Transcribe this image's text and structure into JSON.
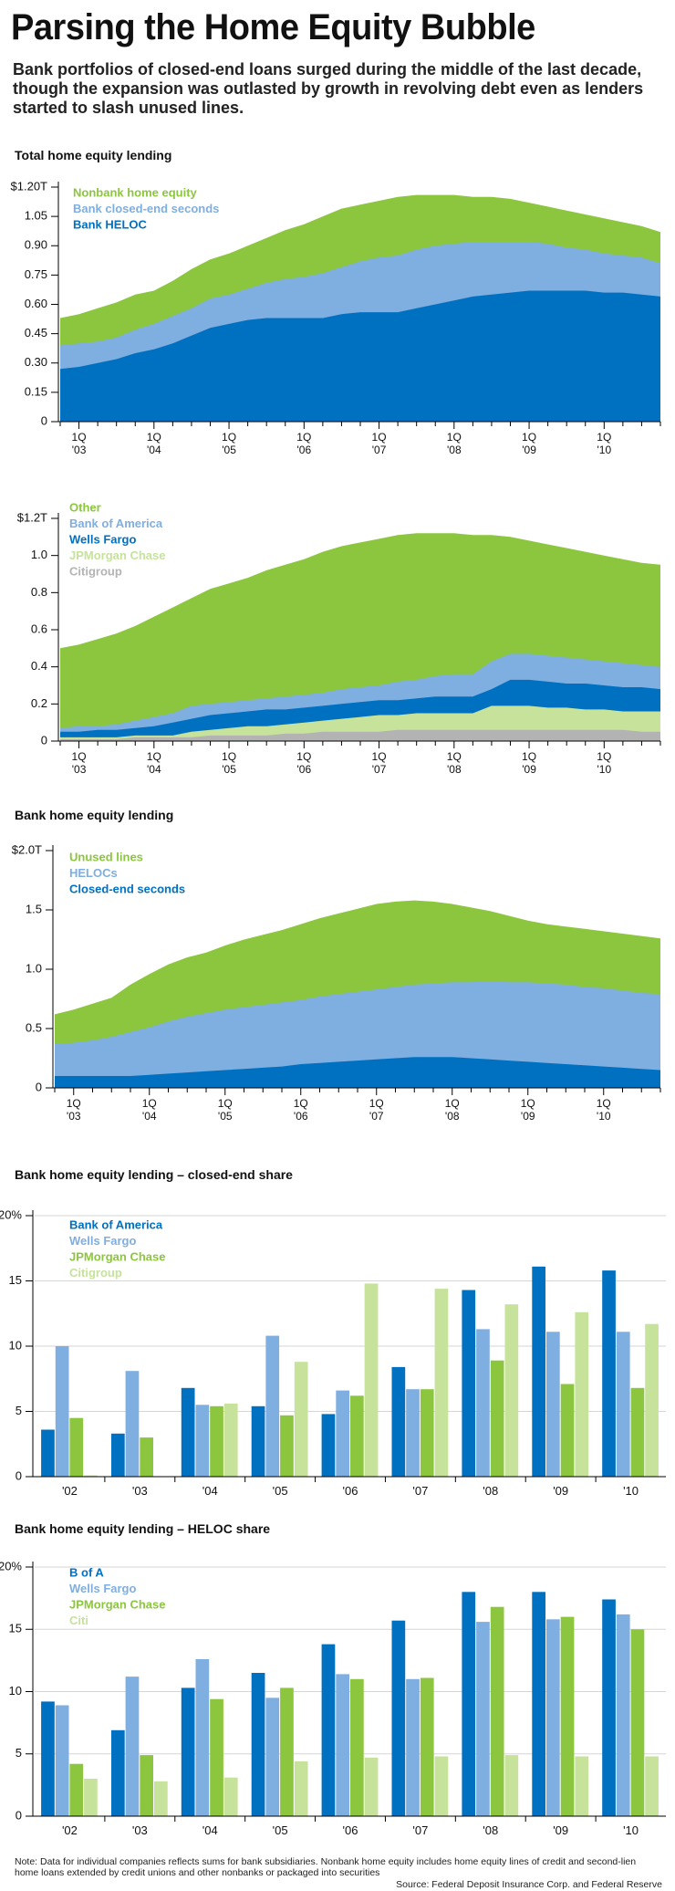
{
  "header": {
    "title": "Parsing the Home Equity Bubble",
    "subtitle": "Bank portfolios of closed-end loans surged during the middle of the last decade, though the expansion was outlasted by growth in revolving debt even as lenders started to slash unused lines."
  },
  "colors": {
    "dark_blue": "#0070c0",
    "light_blue": "#7faee0",
    "green": "#8cc63e",
    "light_green": "#c6e29b",
    "gray": "#b3b3b3",
    "axis": "#000000"
  },
  "chart_data": [
    {
      "id": "total",
      "type": "area",
      "title": "Total home equity lending",
      "x_tick_labels": [
        [
          "1Q",
          "'03"
        ],
        [
          "1Q",
          "'04"
        ],
        [
          "1Q",
          "'05"
        ],
        [
          "1Q",
          "'06"
        ],
        [
          "1Q",
          "'07"
        ],
        [
          "1Q",
          "'08"
        ],
        [
          "1Q",
          "'09"
        ],
        [
          "1Q",
          "'10"
        ]
      ],
      "x_tick_positions": [
        1,
        5,
        9,
        13,
        17,
        21,
        25,
        29
      ],
      "y_ticks": [
        0,
        0.15,
        0.3,
        0.45,
        0.6,
        0.75,
        0.9,
        1.05,
        1.2
      ],
      "y_tick_labels": [
        "0",
        "0.15",
        "0.30",
        "0.45",
        "0.60",
        "0.75",
        "0.90",
        "1.05",
        "$1.20T"
      ],
      "ylim": [
        0,
        1.2
      ],
      "x_count": 33,
      "legend": [
        {
          "label": "Nonbank home equity",
          "color": "#8cc63e"
        },
        {
          "label": "Bank closed-end seconds",
          "color": "#7faee0"
        },
        {
          "label": "Bank HELOC",
          "color": "#0070c0"
        }
      ],
      "series": [
        {
          "name": "Bank HELOC",
          "color": "#0070c0",
          "values": [
            0.27,
            0.28,
            0.3,
            0.32,
            0.35,
            0.37,
            0.4,
            0.44,
            0.48,
            0.5,
            0.52,
            0.53,
            0.53,
            0.53,
            0.53,
            0.55,
            0.56,
            0.56,
            0.56,
            0.58,
            0.6,
            0.62,
            0.64,
            0.65,
            0.66,
            0.67,
            0.67,
            0.67,
            0.67,
            0.66,
            0.66,
            0.65,
            0.64
          ]
        },
        {
          "name": "Bank closed-end seconds",
          "color": "#7faee0",
          "values": [
            0.39,
            0.4,
            0.41,
            0.43,
            0.47,
            0.5,
            0.54,
            0.58,
            0.63,
            0.65,
            0.68,
            0.71,
            0.73,
            0.74,
            0.76,
            0.79,
            0.82,
            0.84,
            0.85,
            0.88,
            0.9,
            0.91,
            0.92,
            0.92,
            0.92,
            0.92,
            0.91,
            0.89,
            0.88,
            0.86,
            0.85,
            0.84,
            0.81
          ]
        },
        {
          "name": "Nonbank home equity",
          "color": "#8cc63e",
          "values": [
            0.53,
            0.55,
            0.58,
            0.61,
            0.65,
            0.67,
            0.72,
            0.78,
            0.83,
            0.86,
            0.9,
            0.94,
            0.98,
            1.01,
            1.05,
            1.09,
            1.11,
            1.13,
            1.15,
            1.16,
            1.16,
            1.16,
            1.15,
            1.15,
            1.14,
            1.12,
            1.1,
            1.08,
            1.06,
            1.04,
            1.02,
            1.0,
            0.97
          ]
        }
      ]
    },
    {
      "id": "by_bank",
      "type": "area",
      "title": "",
      "x_tick_labels": [
        [
          "1Q",
          "'03"
        ],
        [
          "1Q",
          "'04"
        ],
        [
          "1Q",
          "'05"
        ],
        [
          "1Q",
          "'06"
        ],
        [
          "1Q",
          "'07"
        ],
        [
          "1Q",
          "'08"
        ],
        [
          "1Q",
          "'09"
        ],
        [
          "1Q",
          "'10"
        ]
      ],
      "x_tick_positions": [
        1,
        5,
        9,
        13,
        17,
        21,
        25,
        29
      ],
      "y_ticks": [
        0,
        0.2,
        0.4,
        0.6,
        0.8,
        1.0,
        1.2
      ],
      "y_tick_labels": [
        "0",
        "0.2",
        "0.4",
        "0.6",
        "0.8",
        "1.0",
        "$1.2T"
      ],
      "ylim": [
        0,
        1.2
      ],
      "x_count": 33,
      "legend": [
        {
          "label": "Other",
          "color": "#8cc63e"
        },
        {
          "label": "Bank of America",
          "color": "#7faee0"
        },
        {
          "label": "Wells Fargo",
          "color": "#0070c0"
        },
        {
          "label": "JPMorgan Chase",
          "color": "#c6e29b"
        },
        {
          "label": "Citigroup",
          "color": "#b3b3b3"
        }
      ],
      "series": [
        {
          "name": "Citigroup",
          "color": "#b3b3b3",
          "values": [
            0.01,
            0.01,
            0.01,
            0.01,
            0.02,
            0.02,
            0.02,
            0.02,
            0.03,
            0.03,
            0.03,
            0.03,
            0.04,
            0.04,
            0.05,
            0.05,
            0.05,
            0.05,
            0.06,
            0.06,
            0.06,
            0.06,
            0.06,
            0.06,
            0.06,
            0.06,
            0.06,
            0.06,
            0.06,
            0.06,
            0.06,
            0.05,
            0.05
          ]
        },
        {
          "name": "JPMorgan Chase",
          "color": "#c6e29b",
          "values": [
            0.02,
            0.02,
            0.02,
            0.02,
            0.03,
            0.03,
            0.03,
            0.05,
            0.06,
            0.07,
            0.08,
            0.08,
            0.09,
            0.1,
            0.11,
            0.12,
            0.13,
            0.14,
            0.14,
            0.15,
            0.15,
            0.15,
            0.15,
            0.19,
            0.19,
            0.19,
            0.18,
            0.18,
            0.17,
            0.17,
            0.16,
            0.16,
            0.16
          ]
        },
        {
          "name": "Wells Fargo",
          "color": "#0070c0",
          "values": [
            0.05,
            0.05,
            0.06,
            0.06,
            0.07,
            0.08,
            0.1,
            0.12,
            0.14,
            0.15,
            0.16,
            0.17,
            0.17,
            0.18,
            0.19,
            0.2,
            0.21,
            0.22,
            0.22,
            0.23,
            0.24,
            0.24,
            0.24,
            0.28,
            0.33,
            0.33,
            0.32,
            0.31,
            0.31,
            0.3,
            0.29,
            0.29,
            0.28
          ]
        },
        {
          "name": "Bank of America",
          "color": "#7faee0",
          "values": [
            0.07,
            0.08,
            0.08,
            0.09,
            0.11,
            0.13,
            0.15,
            0.19,
            0.2,
            0.21,
            0.22,
            0.23,
            0.24,
            0.25,
            0.26,
            0.28,
            0.29,
            0.3,
            0.32,
            0.33,
            0.35,
            0.36,
            0.36,
            0.43,
            0.47,
            0.47,
            0.46,
            0.45,
            0.44,
            0.43,
            0.42,
            0.41,
            0.4
          ]
        },
        {
          "name": "Other",
          "color": "#8cc63e",
          "values": [
            0.5,
            0.52,
            0.55,
            0.58,
            0.62,
            0.67,
            0.72,
            0.77,
            0.82,
            0.85,
            0.88,
            0.92,
            0.95,
            0.98,
            1.02,
            1.05,
            1.07,
            1.09,
            1.11,
            1.12,
            1.12,
            1.12,
            1.11,
            1.11,
            1.1,
            1.08,
            1.06,
            1.04,
            1.02,
            1.0,
            0.98,
            0.96,
            0.95
          ]
        }
      ]
    },
    {
      "id": "bank_lending",
      "type": "area",
      "title": "Bank home equity lending",
      "x_tick_labels": [
        [
          "1Q",
          "'03"
        ],
        [
          "1Q",
          "'04"
        ],
        [
          "1Q",
          "'05"
        ],
        [
          "1Q",
          "'06"
        ],
        [
          "1Q",
          "'07"
        ],
        [
          "1Q",
          "'08"
        ],
        [
          "1Q",
          "'09"
        ],
        [
          "1Q",
          "'10"
        ]
      ],
      "x_tick_positions": [
        1,
        5,
        9,
        13,
        17,
        21,
        25,
        29
      ],
      "y_ticks": [
        0,
        0.5,
        1.0,
        1.5,
        2.0
      ],
      "y_tick_labels": [
        "0",
        "0.5",
        "1.0",
        "1.5",
        "$2.0T"
      ],
      "ylim": [
        0,
        2.0
      ],
      "x_count": 33,
      "legend": [
        {
          "label": "Unused lines",
          "color": "#8cc63e"
        },
        {
          "label": "HELOCs",
          "color": "#7faee0"
        },
        {
          "label": "Closed-end seconds",
          "color": "#0070c0"
        }
      ],
      "series": [
        {
          "name": "Closed-end seconds",
          "color": "#0070c0",
          "values": [
            0.1,
            0.1,
            0.1,
            0.1,
            0.1,
            0.11,
            0.12,
            0.13,
            0.14,
            0.15,
            0.16,
            0.17,
            0.18,
            0.2,
            0.21,
            0.22,
            0.23,
            0.24,
            0.25,
            0.26,
            0.26,
            0.26,
            0.25,
            0.24,
            0.23,
            0.22,
            0.21,
            0.2,
            0.19,
            0.18,
            0.17,
            0.16,
            0.15
          ]
        },
        {
          "name": "HELOCs",
          "color": "#7faee0",
          "values": [
            0.37,
            0.38,
            0.4,
            0.43,
            0.47,
            0.51,
            0.56,
            0.6,
            0.63,
            0.66,
            0.68,
            0.7,
            0.72,
            0.74,
            0.77,
            0.79,
            0.81,
            0.83,
            0.85,
            0.87,
            0.88,
            0.89,
            0.89,
            0.9,
            0.89,
            0.89,
            0.88,
            0.87,
            0.85,
            0.84,
            0.82,
            0.8,
            0.79
          ]
        },
        {
          "name": "Unused lines",
          "color": "#8cc63e",
          "values": [
            0.62,
            0.66,
            0.71,
            0.76,
            0.87,
            0.96,
            1.04,
            1.1,
            1.14,
            1.2,
            1.25,
            1.29,
            1.33,
            1.38,
            1.43,
            1.47,
            1.51,
            1.55,
            1.57,
            1.58,
            1.57,
            1.55,
            1.52,
            1.49,
            1.45,
            1.41,
            1.38,
            1.36,
            1.34,
            1.32,
            1.3,
            1.28,
            1.26
          ]
        }
      ]
    },
    {
      "id": "closed_end_share",
      "type": "bar",
      "title": "Bank home equity lending – closed-end share",
      "categories": [
        "'02",
        "'03",
        "'04",
        "'05",
        "'06",
        "'07",
        "'08",
        "'09",
        "'10"
      ],
      "y_ticks": [
        0,
        5,
        10,
        15,
        20
      ],
      "y_tick_labels": [
        "0",
        "5",
        "10",
        "15",
        "20%"
      ],
      "ylim": [
        0,
        20
      ],
      "legend": [
        {
          "label": "Bank of America",
          "color": "#0070c0"
        },
        {
          "label": "Wells Fargo",
          "color": "#7faee0"
        },
        {
          "label": "JPMorgan Chase",
          "color": "#8cc63e"
        },
        {
          "label": "Citigroup",
          "color": "#c6e29b"
        }
      ],
      "series": [
        {
          "name": "Bank of America",
          "color": "#0070c0",
          "values": [
            3.6,
            3.3,
            6.8,
            5.4,
            4.8,
            8.4,
            14.3,
            16.1,
            15.8
          ]
        },
        {
          "name": "Wells Fargo",
          "color": "#7faee0",
          "values": [
            10.0,
            8.1,
            5.5,
            10.8,
            6.6,
            6.7,
            11.3,
            11.1,
            11.1
          ]
        },
        {
          "name": "JPMorgan Chase",
          "color": "#8cc63e",
          "values": [
            4.5,
            3.0,
            5.4,
            4.7,
            6.2,
            6.7,
            8.9,
            7.1,
            6.8
          ]
        },
        {
          "name": "Citigroup",
          "color": "#c6e29b",
          "values": [
            0.1,
            0,
            5.6,
            8.8,
            14.8,
            14.4,
            13.2,
            12.6,
            11.7
          ]
        }
      ]
    },
    {
      "id": "heloc_share",
      "type": "bar",
      "title": "Bank home equity lending – HELOC share",
      "categories": [
        "'02",
        "'03",
        "'04",
        "'05",
        "'06",
        "'07",
        "'08",
        "'09",
        "'10"
      ],
      "y_ticks": [
        0,
        5,
        10,
        15,
        20
      ],
      "y_tick_labels": [
        "0",
        "5",
        "10",
        "15",
        "20%"
      ],
      "ylim": [
        0,
        20
      ],
      "legend": [
        {
          "label": "B of A",
          "color": "#0070c0"
        },
        {
          "label": "Wells Fargo",
          "color": "#7faee0"
        },
        {
          "label": "JPMorgan Chase",
          "color": "#8cc63e"
        },
        {
          "label": "Citi",
          "color": "#c6e29b"
        }
      ],
      "series": [
        {
          "name": "B of A",
          "color": "#0070c0",
          "values": [
            9.2,
            6.9,
            10.3,
            11.5,
            13.8,
            15.7,
            18.0,
            18.0,
            17.4
          ]
        },
        {
          "name": "Wells Fargo",
          "color": "#7faee0",
          "values": [
            8.9,
            11.2,
            12.6,
            9.5,
            11.4,
            11.0,
            15.6,
            15.8,
            16.2
          ]
        },
        {
          "name": "JPMorgan Chase",
          "color": "#8cc63e",
          "values": [
            4.2,
            4.9,
            9.4,
            10.3,
            11.0,
            11.1,
            16.8,
            16.0,
            15.0
          ]
        },
        {
          "name": "Citi",
          "color": "#c6e29b",
          "values": [
            3.0,
            2.8,
            3.1,
            4.4,
            4.7,
            4.8,
            4.9,
            4.8,
            4.8
          ]
        }
      ]
    }
  ],
  "footer": {
    "note": "Note: Data for individual companies reflects sums for bank subsidiaries. Nonbank home equity includes home equity lines of credit and second-lien home loans extended by credit unions and other nonbanks or packaged into securities",
    "source": "Source: Federal Deposit Insurance Corp. and Federal Reserve"
  }
}
